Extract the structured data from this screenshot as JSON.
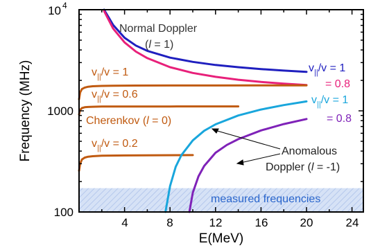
{
  "chart_data": {
    "type": "line",
    "title": "",
    "xlabel": "E(MeV)",
    "ylabel": "Frequency (MHz)",
    "xlim": [
      0,
      25
    ],
    "ylim": [
      100,
      10000
    ],
    "yscale": "log",
    "grid": false,
    "x_tick_labels": [
      "4",
      "8",
      "12",
      "16",
      "20",
      "24"
    ],
    "y_tick_labels": [
      "100",
      "1000"
    ],
    "y_top_tick": {
      "base": "10",
      "exp": "4"
    },
    "shaded_band": {
      "label": "measured frequencies",
      "y_range": [
        100,
        172
      ],
      "color": "#c9d8f2"
    },
    "series": [
      {
        "group": "normal",
        "color": "#1f1fbf",
        "x": [
          2.2,
          3,
          4,
          5,
          6,
          8,
          10,
          12,
          14,
          16,
          18,
          20
        ],
        "y": [
          10000,
          7060,
          5280,
          4420,
          3920,
          3360,
          3050,
          2840,
          2700,
          2590,
          2500,
          2430
        ]
      },
      {
        "group": "normal",
        "color": "#e8207a",
        "x": [
          2.2,
          3,
          4,
          5,
          6,
          8,
          10,
          12,
          14,
          16,
          18,
          20
        ],
        "y": [
          9700,
          6500,
          4750,
          3850,
          3320,
          2700,
          2370,
          2170,
          2030,
          1930,
          1860,
          1800
        ]
      },
      {
        "group": "cherenkov",
        "color": "#c05a10",
        "x": [
          0,
          0.1,
          0.25,
          0.5,
          0.8,
          1.2,
          2,
          3,
          5,
          8,
          12,
          16,
          20
        ],
        "y": [
          1300,
          1520,
          1640,
          1700,
          1730,
          1750,
          1765,
          1772,
          1777,
          1780,
          1782,
          1783,
          1783
        ]
      },
      {
        "group": "cherenkov",
        "color": "#c05a10",
        "x": [
          0,
          0.1,
          0.25,
          0.5,
          0.8,
          1.2,
          2,
          3,
          5,
          8,
          12,
          14
        ],
        "y": [
          920,
          1020,
          1065,
          1085,
          1093,
          1098,
          1102,
          1104,
          1105,
          1105,
          1106,
          1106
        ]
      },
      {
        "group": "cherenkov",
        "color": "#c05a10",
        "x": [
          0,
          0.1,
          0.25,
          0.5,
          0.8,
          1.2,
          2,
          4,
          7,
          10
        ],
        "y": [
          255,
          300,
          330,
          345,
          352,
          356,
          360,
          362,
          364,
          365
        ]
      },
      {
        "group": "anomalous",
        "color": "#19a6dc",
        "x": [
          7.6,
          8,
          8.5,
          9,
          10,
          11,
          12,
          14,
          16,
          18,
          20
        ],
        "y": [
          100,
          180,
          280,
          365,
          510,
          635,
          735,
          900,
          1030,
          1140,
          1240
        ]
      },
      {
        "group": "anomalous",
        "color": "#7f22b8",
        "x": [
          9.7,
          10,
          10.5,
          11,
          12,
          13,
          14,
          16,
          18,
          20
        ],
        "y": [
          100,
          155,
          225,
          285,
          385,
          460,
          525,
          640,
          740,
          830
        ]
      }
    ],
    "annotations": {
      "normal_doppler": {
        "line1": "Normal Doppler",
        "line2_pre": "(",
        "l": "l",
        "line2_post": " = 1)"
      },
      "normal_v1": {
        "v": "v",
        "sub": "||",
        "rest": "/v = 1"
      },
      "normal_v08": "= 0.8",
      "cher_1": {
        "v": "v",
        "sub": "||",
        "rest": "/v = 1"
      },
      "cher_06": {
        "v": "v",
        "sub": "||",
        "rest": "/v = 0.6"
      },
      "cherenkov": {
        "pre": "Cherenkov (",
        "l": "l",
        "post": " = 0)"
      },
      "cher_02": {
        "v": "v",
        "sub": "||",
        "rest": "/v = 0.2"
      },
      "anom_v1": {
        "v": "v",
        "sub": "||",
        "rest": "/v = 1"
      },
      "anom_v08": "= 0.8",
      "anomalous_doppler": {
        "line1": "Anomalous",
        "line2_pre": "Doppler (",
        "l": "l",
        "line2_post": " = -1)"
      }
    },
    "colors": {
      "normal_text": "#333333",
      "cherenkov": "#c05a10",
      "blue": "#1f1fbf",
      "pink": "#e8207a",
      "cyan": "#19a6dc",
      "purple": "#7f22b8",
      "band_text": "#2a66cc"
    }
  }
}
